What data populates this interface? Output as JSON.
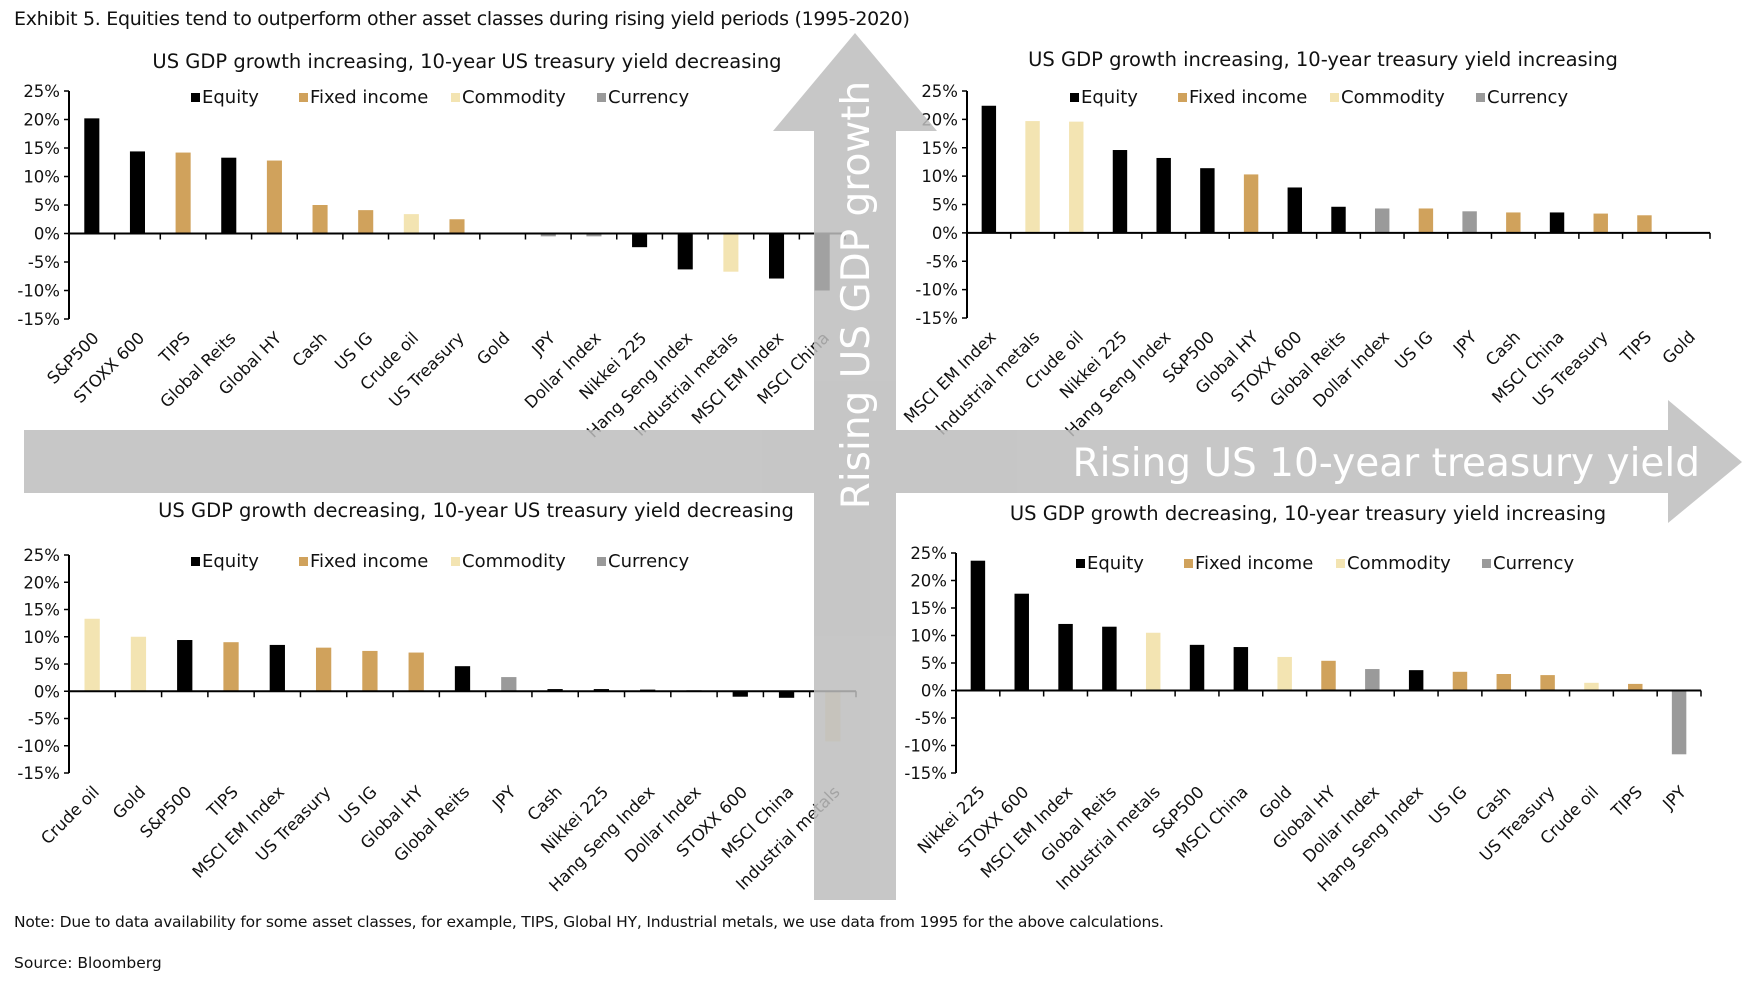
{
  "exhibit_title": "Exhibit 5. Equities tend to outperform other asset classes during rising yield periods (1995-2020)",
  "note": "Note: Due to data availability for some asset classes, for example, TIPS, Global HY, Industrial metals, we use data from 1995 for the above calculations.",
  "source": "Source: Bloomberg",
  "arrows": {
    "vertical_label": "Rising US GDP growth",
    "horizontal_label": "Rising US 10-year treasury yield",
    "color": "#bdbdbd"
  },
  "legend": [
    {
      "key": "E",
      "label": "Equity",
      "color": "#000000"
    },
    {
      "key": "F",
      "label": "Fixed income",
      "color": "#d0a25c"
    },
    {
      "key": "C",
      "label": "Commodity",
      "color": "#f3e4b2"
    },
    {
      "key": "X",
      "label": "Currency",
      "color": "#9a9a9a"
    }
  ],
  "chart_data": [
    {
      "type": "bar",
      "title": "US GDP growth increasing, 10-year US treasury yield decreasing",
      "ylim": [
        -15,
        25
      ],
      "yticks": [
        "25%",
        "20%",
        "15%",
        "10%",
        "5%",
        "0%",
        "-5%",
        "-10%",
        "-15%"
      ],
      "legend_position": "top",
      "categories": [
        "S&P500",
        "STOXX 600",
        "TIPS",
        "Global Reits",
        "Global HY",
        "Cash",
        "US IG",
        "Crude oil",
        "US Treasury",
        "Gold",
        "JPY",
        "Dollar Index",
        "Nikkei 225",
        "Hang Seng Index",
        "Industrial metals",
        "MSCI EM Index",
        "MSCI China"
      ],
      "values": [
        20.2,
        14.4,
        14.2,
        13.3,
        12.8,
        5.0,
        4.1,
        3.4,
        2.5,
        0.1,
        -0.5,
        -0.5,
        -2.4,
        -6.3,
        -6.7,
        -7.9,
        -10.0
      ],
      "asset_class": [
        "E",
        "E",
        "F",
        "E",
        "F",
        "F",
        "F",
        "C",
        "F",
        "C",
        "X",
        "X",
        "E",
        "E",
        "C",
        "E",
        "E"
      ]
    },
    {
      "type": "bar",
      "title": "US GDP growth increasing, 10-year treasury yield increasing",
      "ylim": [
        -15,
        25
      ],
      "yticks": [
        "25%",
        "20%",
        "15%",
        "10%",
        "5%",
        "0%",
        "-5%",
        "-10%",
        "-15%"
      ],
      "legend_position": "top",
      "categories": [
        "MSCI EM Index",
        "Industrial metals",
        "Crude oil",
        "Nikkei 225",
        "Hang Seng Index",
        "S&P500",
        "Global HY",
        "STOXX 600",
        "Global Reits",
        "Dollar Index",
        "US IG",
        "JPY",
        "Cash",
        "MSCI China",
        "US Treasury",
        "TIPS",
        "Gold"
      ],
      "values": [
        22.4,
        19.7,
        19.6,
        14.6,
        13.2,
        11.4,
        10.3,
        8.0,
        4.6,
        4.3,
        4.3,
        3.8,
        3.6,
        3.6,
        3.4,
        3.1,
        0.0
      ],
      "asset_class": [
        "E",
        "C",
        "C",
        "E",
        "E",
        "E",
        "F",
        "E",
        "E",
        "X",
        "F",
        "X",
        "F",
        "E",
        "F",
        "F",
        "C"
      ]
    },
    {
      "type": "bar",
      "title": "US GDP growth decreasing, 10-year US treasury yield decreasing",
      "ylim": [
        -15,
        25
      ],
      "yticks": [
        "25%",
        "20%",
        "15%",
        "10%",
        "5%",
        "0%",
        "-5%",
        "-10%",
        "-15%"
      ],
      "legend_position": "top",
      "categories": [
        "Crude oil",
        "Gold",
        "S&P500",
        "TIPS",
        "MSCI EM Index",
        "US Treasury",
        "US IG",
        "Global HY",
        "Global Reits",
        "JPY",
        "Cash",
        "Nikkei 225",
        "Hang Seng Index",
        "Dollar Index",
        "STOXX 600",
        "MSCI China",
        "Industrial metals"
      ],
      "values": [
        13.3,
        10.0,
        9.4,
        9.0,
        8.5,
        8.0,
        7.4,
        7.1,
        4.6,
        2.6,
        0.4,
        0.4,
        0.3,
        0.2,
        -1.0,
        -1.2,
        -9.2
      ],
      "asset_class": [
        "C",
        "C",
        "E",
        "F",
        "E",
        "F",
        "F",
        "F",
        "E",
        "X",
        "E",
        "E",
        "E",
        "X",
        "E",
        "E",
        "C"
      ]
    },
    {
      "type": "bar",
      "title": "US GDP growth decreasing, 10-year treasury yield increasing",
      "ylim": [
        -15,
        25
      ],
      "yticks": [
        "25%",
        "20%",
        "15%",
        "10%",
        "5%",
        "0%",
        "-5%",
        "-10%",
        "-15%"
      ],
      "legend_position": "top",
      "categories": [
        "Nikkei 225",
        "STOXX 600",
        "MSCI EM Index",
        "Global Reits",
        "Industrial metals",
        "S&P500",
        "MSCI China",
        "Gold",
        "Global HY",
        "Dollar Index",
        "Hang Seng Index",
        "US IG",
        "Cash",
        "US Treasury",
        "Crude oil",
        "TIPS",
        "JPY"
      ],
      "values": [
        23.6,
        17.6,
        12.1,
        11.6,
        10.5,
        8.3,
        7.9,
        6.1,
        5.4,
        3.9,
        3.7,
        3.4,
        3.0,
        2.8,
        1.4,
        1.2,
        -11.6
      ],
      "asset_class": [
        "E",
        "E",
        "E",
        "E",
        "C",
        "E",
        "E",
        "C",
        "F",
        "X",
        "E",
        "F",
        "F",
        "F",
        "C",
        "F",
        "X"
      ]
    }
  ]
}
